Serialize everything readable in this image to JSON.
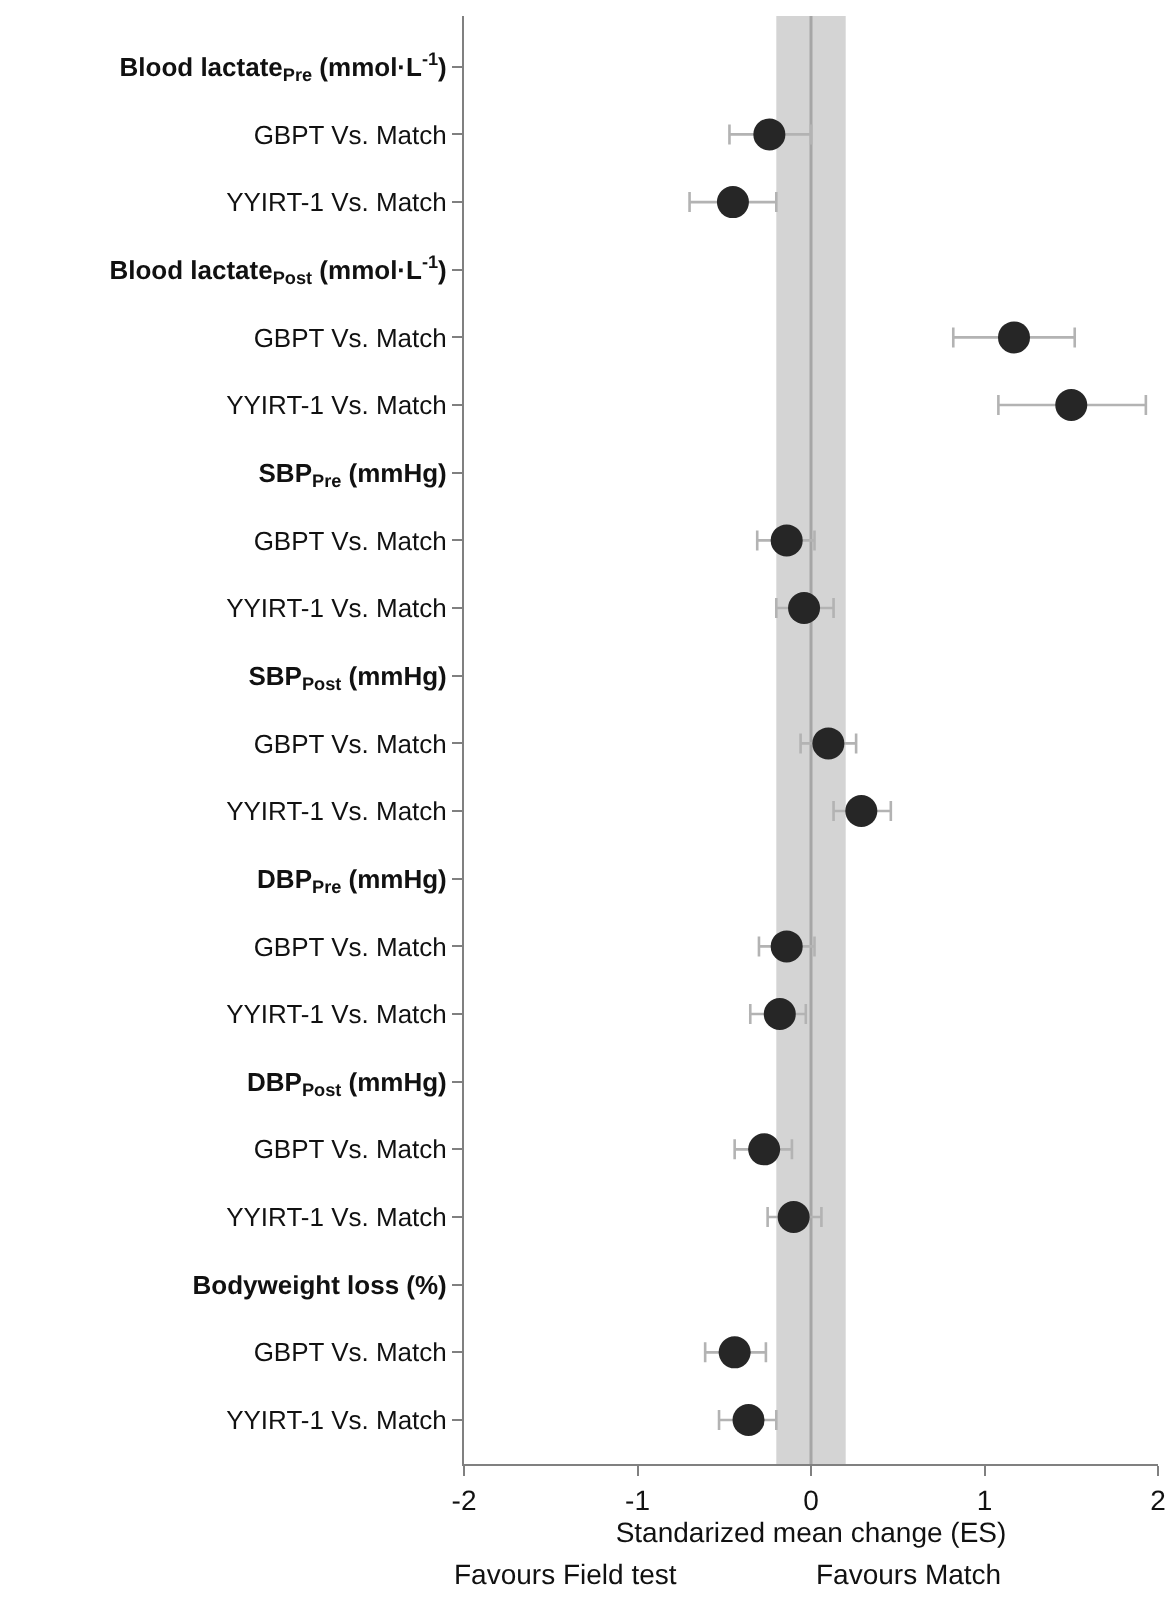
{
  "chart_data": {
    "type": "scatter",
    "orientation": "horizontal",
    "categories": [
      "Blood lactate$_{Pre}$ (mmol·L$^{-1}$)",
      "GBPT Vs. Match",
      "YYIRT-1 Vs. Match",
      "Blood lactate$_{Post}$ (mmol·L$^{-1}$)",
      "GBPT Vs. Match",
      "YYIRT-1 Vs. Match",
      "SBP$_{Pre}$ (mmHg)",
      "GBPT Vs. Match",
      "YYIRT-1 Vs. Match",
      "SBP$_{Post}$ (mmHg)",
      "GBPT Vs. Match",
      "YYIRT-1 Vs. Match",
      "DBP$_{Pre}$ (mmHg)",
      "GBPT Vs. Match",
      "YYIRT-1 Vs. Match",
      "DBP$_{Post}$ (mmHg)",
      "GBPT Vs. Match",
      "YYIRT-1 Vs. Match",
      "Bodyweight loss (%)",
      "GBPT Vs. Match",
      "YYIRT-1 Vs. Match"
    ],
    "series": [
      {
        "color": "#262626",
        "values": [
          null,
          -0.24,
          -0.45,
          null,
          1.17,
          1.5,
          null,
          -0.14,
          -0.04,
          null,
          0.1,
          0.29,
          null,
          -0.14,
          -0.18,
          null,
          -0.27,
          -0.1,
          null,
          -0.44,
          -0.36
        ],
        "errors": [
          null,
          [
            -0.47,
            0.0
          ],
          [
            -0.7,
            -0.2
          ],
          null,
          [
            0.82,
            1.52
          ],
          [
            1.08,
            1.93
          ],
          null,
          [
            -0.31,
            0.02
          ],
          [
            -0.2,
            0.13
          ],
          null,
          [
            -0.06,
            0.26
          ],
          [
            0.13,
            0.46
          ],
          null,
          [
            -0.3,
            0.02
          ],
          [
            -0.35,
            -0.03
          ],
          null,
          [
            -0.44,
            -0.11
          ],
          [
            -0.25,
            0.06
          ],
          null,
          [
            -0.61,
            -0.26
          ],
          [
            -0.53,
            -0.2
          ]
        ]
      }
    ],
    "xlabel": "Standarized mean change (ES)",
    "annotations": [
      "Favours Field test",
      "Favours Match"
    ],
    "xlim": [
      -2,
      2
    ],
    "xticks": [
      -2,
      -1,
      0,
      1,
      2
    ],
    "bands": [
      {
        "axis": "x",
        "from": -0.2,
        "to": 0.2,
        "color": "#d4d4d4"
      }
    ],
    "ref_lines": [
      {
        "axis": "x",
        "value": 0,
        "color": "#a6a6a6"
      }
    ],
    "marker": "circle",
    "grid": false
  }
}
